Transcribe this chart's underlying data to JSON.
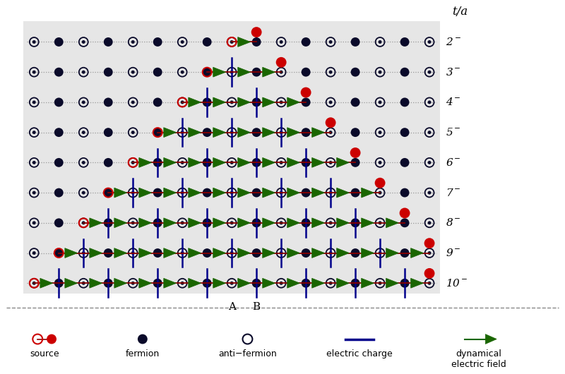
{
  "title": "",
  "ta_label": "t/a",
  "rows": [
    2,
    3,
    4,
    5,
    6,
    7,
    8,
    9,
    10
  ],
  "row_labels": [
    "2$^-$",
    "3$^-$",
    "4$^-$",
    "5$^-$",
    "6$^-$",
    "7$^-$",
    "8$^-$",
    "9$^-$",
    "10$^-$"
  ],
  "bg_color": "#e6e6e6",
  "outer_bg": "#ffffff",
  "fermion_color": "#0a0a2a",
  "source_open_color": "#cc0000",
  "source_filled_color": "#cc0000",
  "arrow_color": "#1a6600",
  "charge_color": "#00008B",
  "line_color": "#8B0000",
  "dot_line_color": "#999999",
  "A_label": "A",
  "B_label": "B",
  "n_sites": 17,
  "n_rows": 9,
  "src_left_indices": [
    8,
    7,
    6,
    5,
    4,
    3,
    2,
    1,
    0
  ],
  "src_right_indices": [
    9,
    9,
    9,
    9,
    9,
    9,
    9,
    9,
    9
  ]
}
